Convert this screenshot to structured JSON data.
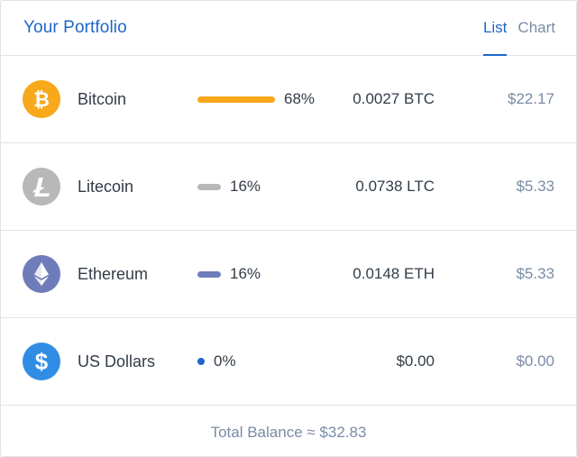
{
  "header": {
    "title": "Your Portfolio",
    "tabs": [
      {
        "label": "List",
        "active": true
      },
      {
        "label": "Chart",
        "active": false
      }
    ]
  },
  "assets": [
    {
      "name": "Bitcoin",
      "icon": "bitcoin-icon",
      "icon_color": "#f7a81b",
      "bar_color": "#f7a81b",
      "percent": "68%",
      "share": 0.68,
      "amount": "0.0027 BTC",
      "value": "$22.17"
    },
    {
      "name": "Litecoin",
      "icon": "litecoin-icon",
      "icon_color": "#b8b8b8",
      "bar_color": "#b8b8b8",
      "percent": "16%",
      "share": 0.16,
      "amount": "0.0738 LTC",
      "value": "$5.33"
    },
    {
      "name": "Ethereum",
      "icon": "ethereum-icon",
      "icon_color": "#6f7cba",
      "bar_color": "#6f7cba",
      "percent": "16%",
      "share": 0.16,
      "amount": "0.0148 ETH",
      "value": "$5.33"
    },
    {
      "name": "US Dollars",
      "icon": "dollar-icon",
      "icon_color": "#2f8de4",
      "bar_color": "#1d66c9",
      "percent": "0%",
      "share": 0.0,
      "amount": "$0.00",
      "value": "$0.00"
    }
  ],
  "footer": {
    "total_label": "Total Balance ≈ $32.83"
  },
  "colors": {
    "accent": "#1d66c9",
    "muted": "#7a8ba6",
    "border": "#dfe3e8"
  }
}
